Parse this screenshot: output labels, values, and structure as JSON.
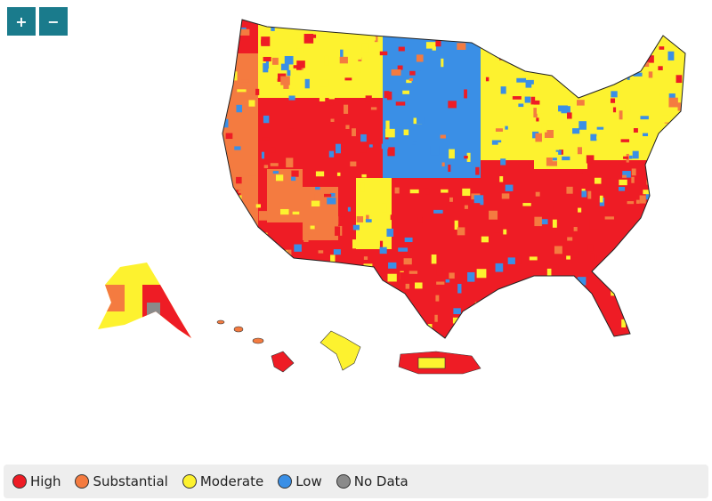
{
  "zoom_controls": {
    "zoom_in": "+",
    "zoom_out": "−"
  },
  "legend": [
    {
      "label": "High",
      "color": "#ee1c25"
    },
    {
      "label": "Substantial",
      "color": "#f47b40"
    },
    {
      "label": "Moderate",
      "color": "#fdf22f"
    },
    {
      "label": "Low",
      "color": "#3a8fe6"
    },
    {
      "label": "No Data",
      "color": "#8a8a8a"
    }
  ]
}
